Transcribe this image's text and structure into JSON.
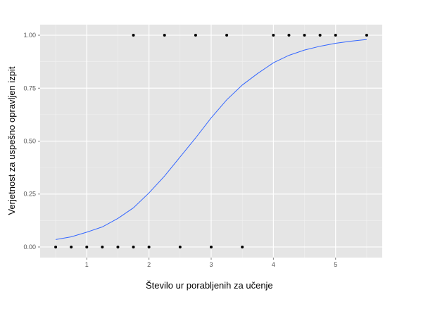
{
  "chart_data": {
    "type": "scatter",
    "xlabel": "Število ur porabljenih za učenje",
    "ylabel": "Verjetnost za uspešno opravljen izpit",
    "xlim": [
      0.25,
      5.75
    ],
    "ylim": [
      -0.05,
      1.05
    ],
    "x_ticks": [
      1,
      2,
      3,
      4,
      5
    ],
    "x_tick_labels": [
      "1",
      "2",
      "3",
      "4",
      "5"
    ],
    "y_ticks": [
      0,
      0.25,
      0.5,
      0.75,
      1
    ],
    "y_tick_labels": [
      "0.00",
      "0.25",
      "0.50",
      "0.75",
      "1.00"
    ],
    "grid": true,
    "colors": {
      "panel": "#e5e5e5",
      "grid_major": "#ffffff",
      "grid_minor": "#f2f2f2",
      "points": "#000000",
      "curve": "#3366ff"
    },
    "series": [
      {
        "type": "scatter",
        "x": [
          0.5,
          0.75,
          1.0,
          1.25,
          1.5,
          1.75,
          1.75,
          2.0,
          2.25,
          2.5,
          2.75,
          3.0,
          3.25,
          3.5,
          4.0,
          4.25,
          4.5,
          4.75,
          5.0,
          5.5
        ],
        "y": [
          0,
          0,
          0,
          0,
          0,
          0,
          1,
          0,
          1,
          0,
          1,
          0,
          1,
          0,
          1,
          1,
          1,
          1,
          1,
          1
        ]
      },
      {
        "type": "line",
        "x": [
          0.5,
          0.75,
          1.0,
          1.25,
          1.5,
          1.75,
          2.0,
          2.25,
          2.5,
          2.75,
          3.0,
          3.25,
          3.5,
          3.75,
          4.0,
          4.25,
          4.5,
          4.75,
          5.0,
          5.25,
          5.5
        ],
        "y": [
          0.035,
          0.048,
          0.07,
          0.095,
          0.135,
          0.185,
          0.255,
          0.335,
          0.425,
          0.515,
          0.61,
          0.695,
          0.765,
          0.82,
          0.87,
          0.905,
          0.93,
          0.948,
          0.962,
          0.972,
          0.98
        ]
      }
    ]
  }
}
